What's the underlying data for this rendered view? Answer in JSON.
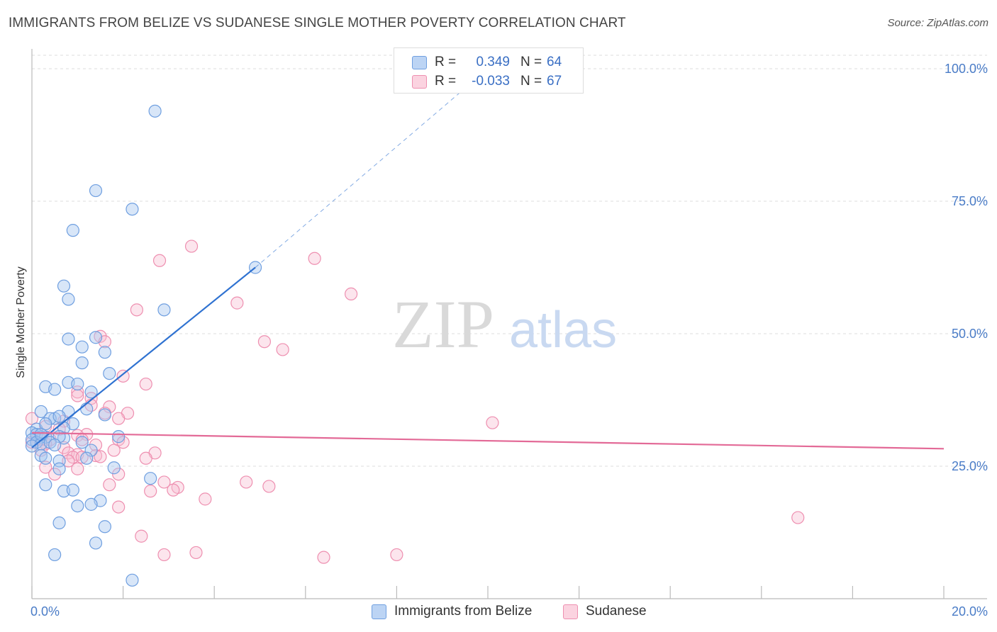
{
  "title": "IMMIGRANTS FROM BELIZE VS SUDANESE SINGLE MOTHER POVERTY CORRELATION CHART",
  "source": "Source: ZipAtlas.com",
  "watermark": {
    "zip": "ZIP",
    "atlas": "atlas"
  },
  "legend": {
    "rows": [
      {
        "r_label": "R =",
        "r_value": "0.349",
        "n_label": "N =",
        "n_value": "64"
      },
      {
        "r_label": "R =",
        "r_value": "-0.033",
        "n_label": "N =",
        "n_value": "67"
      }
    ]
  },
  "bottom_legend": [
    "Immigrants from Belize",
    "Sudanese"
  ],
  "colors": {
    "belize_fill": "#a9c7f0",
    "belize_stroke": "#6f9fe0",
    "belize_line": "#2f72d1",
    "sudanese_fill": "#f7bfd2",
    "sudanese_stroke": "#ee8fb0",
    "sudanese_line": "#e36a97",
    "grid": "#dddddd",
    "axis_tick_text": "#4a7cc7"
  },
  "chart_data": {
    "type": "scatter",
    "title": "IMMIGRANTS FROM BELIZE VS SUDANESE SINGLE MOTHER POVERTY CORRELATION CHART",
    "xlabel": "",
    "ylabel": "Single Mother Poverty",
    "xlim": [
      0,
      20
    ],
    "ylim": [
      0,
      100
    ],
    "x_tick_labels": [
      "0.0%",
      "20.0%"
    ],
    "y_tick_labels": [
      {
        "value": 25,
        "label": "25.0%"
      },
      {
        "value": 50,
        "label": "50.0%"
      },
      {
        "value": 75,
        "label": "75.0%"
      },
      {
        "value": 100,
        "label": "100.0%"
      }
    ],
    "series": [
      {
        "name": "Immigrants from Belize",
        "r": 0.349,
        "n": 64,
        "trend": {
          "x": [
            0.0,
            4.9
          ],
          "y": [
            28.5,
            62.5
          ],
          "extend_to": [
            10.0,
            100.0
          ]
        },
        "points": [
          [
            2.7,
            92.0
          ],
          [
            1.4,
            77.0
          ],
          [
            2.2,
            73.5
          ],
          [
            0.9,
            69.5
          ],
          [
            4.9,
            62.5
          ],
          [
            0.7,
            59.0
          ],
          [
            0.8,
            56.5
          ],
          [
            2.9,
            54.5
          ],
          [
            0.8,
            49.0
          ],
          [
            1.4,
            49.3
          ],
          [
            1.6,
            46.5
          ],
          [
            1.1,
            47.5
          ],
          [
            1.1,
            44.5
          ],
          [
            1.7,
            42.5
          ],
          [
            0.3,
            40.0
          ],
          [
            0.8,
            40.8
          ],
          [
            1.0,
            40.5
          ],
          [
            0.5,
            39.5
          ],
          [
            1.3,
            39.0
          ],
          [
            1.2,
            35.8
          ],
          [
            0.8,
            35.3
          ],
          [
            0.2,
            35.3
          ],
          [
            1.6,
            34.7
          ],
          [
            0.5,
            34.0
          ],
          [
            0.4,
            34.0
          ],
          [
            0.6,
            34.4
          ],
          [
            0.9,
            33.0
          ],
          [
            0.1,
            32.0
          ],
          [
            0.3,
            33.0
          ],
          [
            0.7,
            32.2
          ],
          [
            0.0,
            31.3
          ],
          [
            0.1,
            31.0
          ],
          [
            0.2,
            30.5
          ],
          [
            0.0,
            30.0
          ],
          [
            0.3,
            30.5
          ],
          [
            0.7,
            30.3
          ],
          [
            0.6,
            30.6
          ],
          [
            1.9,
            30.6
          ],
          [
            0.1,
            29.5
          ],
          [
            0.2,
            29.2
          ],
          [
            0.4,
            29.5
          ],
          [
            0.5,
            29.0
          ],
          [
            1.1,
            29.5
          ],
          [
            0.0,
            28.8
          ],
          [
            1.3,
            28.0
          ],
          [
            0.2,
            27.0
          ],
          [
            0.3,
            26.5
          ],
          [
            0.6,
            26.0
          ],
          [
            1.2,
            26.5
          ],
          [
            0.6,
            24.5
          ],
          [
            1.8,
            24.7
          ],
          [
            2.6,
            22.7
          ],
          [
            0.3,
            21.5
          ],
          [
            0.7,
            20.3
          ],
          [
            0.9,
            20.5
          ],
          [
            1.5,
            18.5
          ],
          [
            1.0,
            17.5
          ],
          [
            1.3,
            17.8
          ],
          [
            0.6,
            14.3
          ],
          [
            1.6,
            13.6
          ],
          [
            1.4,
            10.5
          ],
          [
            0.5,
            8.3
          ],
          [
            2.2,
            3.5
          ],
          [
            0.2,
            31.0
          ]
        ]
      },
      {
        "name": "Sudanese",
        "r": -0.033,
        "n": 67,
        "trend": {
          "x": [
            0.0,
            20.0
          ],
          "y": [
            31.3,
            28.3
          ]
        },
        "points": [
          [
            3.5,
            66.5
          ],
          [
            2.8,
            63.8
          ],
          [
            6.2,
            64.2
          ],
          [
            7.0,
            57.5
          ],
          [
            4.5,
            55.8
          ],
          [
            2.3,
            54.5
          ],
          [
            5.1,
            48.5
          ],
          [
            5.5,
            47.0
          ],
          [
            1.5,
            49.5
          ],
          [
            1.6,
            48.5
          ],
          [
            2.0,
            42.0
          ],
          [
            2.5,
            40.5
          ],
          [
            1.0,
            39.0
          ],
          [
            1.0,
            38.3
          ],
          [
            1.3,
            37.8
          ],
          [
            1.3,
            36.5
          ],
          [
            1.7,
            36.2
          ],
          [
            2.1,
            35.0
          ],
          [
            1.6,
            35.0
          ],
          [
            1.9,
            34.0
          ],
          [
            0.0,
            34.0
          ],
          [
            0.7,
            33.5
          ],
          [
            10.1,
            33.2
          ],
          [
            0.3,
            32.5
          ],
          [
            0.6,
            32.0
          ],
          [
            1.2,
            31.0
          ],
          [
            1.0,
            30.8
          ],
          [
            0.1,
            30.5
          ],
          [
            0.2,
            30.0
          ],
          [
            0.4,
            30.0
          ],
          [
            1.1,
            30.0
          ],
          [
            1.9,
            30.0
          ],
          [
            0.0,
            29.5
          ],
          [
            0.3,
            29.2
          ],
          [
            1.4,
            29.0
          ],
          [
            2.0,
            29.5
          ],
          [
            0.7,
            28.5
          ],
          [
            1.8,
            28.0
          ],
          [
            2.7,
            27.5
          ],
          [
            0.8,
            27.5
          ],
          [
            1.0,
            27.2
          ],
          [
            1.4,
            27.0
          ],
          [
            1.5,
            26.8
          ],
          [
            0.9,
            26.7
          ],
          [
            1.1,
            26.7
          ],
          [
            2.5,
            26.5
          ],
          [
            0.8,
            26.0
          ],
          [
            0.3,
            24.8
          ],
          [
            1.0,
            24.5
          ],
          [
            1.9,
            23.5
          ],
          [
            0.5,
            23.5
          ],
          [
            2.9,
            22.0
          ],
          [
            4.7,
            22.0
          ],
          [
            1.7,
            21.5
          ],
          [
            3.2,
            21.0
          ],
          [
            3.1,
            20.5
          ],
          [
            5.2,
            21.2
          ],
          [
            2.6,
            20.3
          ],
          [
            3.8,
            18.8
          ],
          [
            1.9,
            17.3
          ],
          [
            2.4,
            11.8
          ],
          [
            16.8,
            15.3
          ],
          [
            2.9,
            8.3
          ],
          [
            3.6,
            8.7
          ],
          [
            8.0,
            8.3
          ],
          [
            6.4,
            7.8
          ],
          [
            0.2,
            28.0
          ]
        ]
      }
    ]
  }
}
